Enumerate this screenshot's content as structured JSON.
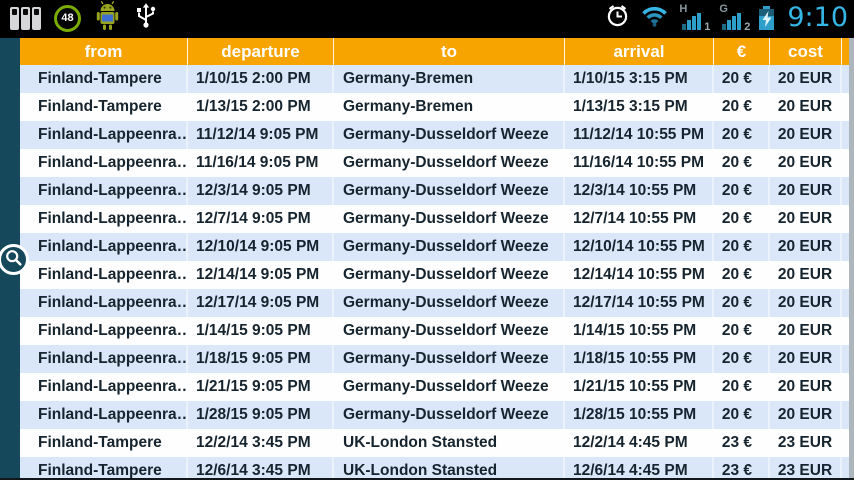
{
  "colors": {
    "header_bg": "#F7A300",
    "accent_blue": "#33B5E5",
    "row_alt_bg": "#D9E7F8",
    "row_bg": "#FFFFFF",
    "left_strip": "#15485A",
    "cell_text": "#16242F",
    "scrollbar": "#AEB6BD"
  },
  "status_bar": {
    "time": "9:10",
    "battery_badge_value": "48",
    "sim1": {
      "network": "H",
      "slot": "1"
    },
    "sim2": {
      "network": "G",
      "slot": "2"
    },
    "icons": [
      "battery-widget-icon",
      "battery-percentage-badge",
      "android-robot-icon",
      "usb-icon",
      "alarm-clock-icon",
      "wifi-icon",
      "signal-sim1-icon",
      "signal-sim2-icon",
      "battery-charging-icon"
    ]
  },
  "table": {
    "columns": [
      {
        "key": "from",
        "label": "from"
      },
      {
        "key": "departure",
        "label": "departure"
      },
      {
        "key": "to",
        "label": "to"
      },
      {
        "key": "arrival",
        "label": "arrival"
      },
      {
        "key": "eur",
        "label": "€"
      },
      {
        "key": "cost",
        "label": "cost"
      }
    ],
    "rows": [
      {
        "from": "Finland-Tampere",
        "departure": "1/10/15 2:00 PM",
        "to": "Germany-Bremen",
        "arrival": "1/10/15 3:15 PM",
        "eur": "20 €",
        "cost": "20 EUR"
      },
      {
        "from": "Finland-Tampere",
        "departure": "1/13/15 2:00 PM",
        "to": "Germany-Bremen",
        "arrival": "1/13/15 3:15 PM",
        "eur": "20 €",
        "cost": "20 EUR"
      },
      {
        "from": "Finland-Lappeenra…",
        "departure": "11/12/14 9:05 PM",
        "to": "Germany-Dusseldorf Weeze",
        "arrival": "11/12/14 10:55 PM",
        "eur": "20 €",
        "cost": "20 EUR"
      },
      {
        "from": "Finland-Lappeenra…",
        "departure": "11/16/14 9:05 PM",
        "to": "Germany-Dusseldorf Weeze",
        "arrival": "11/16/14 10:55 PM",
        "eur": "20 €",
        "cost": "20 EUR"
      },
      {
        "from": "Finland-Lappeenra…",
        "departure": "12/3/14 9:05 PM",
        "to": "Germany-Dusseldorf Weeze",
        "arrival": "12/3/14 10:55 PM",
        "eur": "20 €",
        "cost": "20 EUR"
      },
      {
        "from": "Finland-Lappeenra…",
        "departure": "12/7/14 9:05 PM",
        "to": "Germany-Dusseldorf Weeze",
        "arrival": "12/7/14 10:55 PM",
        "eur": "20 €",
        "cost": "20 EUR"
      },
      {
        "from": "Finland-Lappeenra…",
        "departure": "12/10/14 9:05 PM",
        "to": "Germany-Dusseldorf Weeze",
        "arrival": "12/10/14 10:55 PM",
        "eur": "20 €",
        "cost": "20 EUR"
      },
      {
        "from": "Finland-Lappeenra…",
        "departure": "12/14/14 9:05 PM",
        "to": "Germany-Dusseldorf Weeze",
        "arrival": "12/14/14 10:55 PM",
        "eur": "20 €",
        "cost": "20 EUR"
      },
      {
        "from": "Finland-Lappeenra…",
        "departure": "12/17/14 9:05 PM",
        "to": "Germany-Dusseldorf Weeze",
        "arrival": "12/17/14 10:55 PM",
        "eur": "20 €",
        "cost": "20 EUR"
      },
      {
        "from": "Finland-Lappeenra…",
        "departure": "1/14/15 9:05 PM",
        "to": "Germany-Dusseldorf Weeze",
        "arrival": "1/14/15 10:55 PM",
        "eur": "20 €",
        "cost": "20 EUR"
      },
      {
        "from": "Finland-Lappeenra…",
        "departure": "1/18/15 9:05 PM",
        "to": "Germany-Dusseldorf Weeze",
        "arrival": "1/18/15 10:55 PM",
        "eur": "20 €",
        "cost": "20 EUR"
      },
      {
        "from": "Finland-Lappeenra…",
        "departure": "1/21/15 9:05 PM",
        "to": "Germany-Dusseldorf Weeze",
        "arrival": "1/21/15 10:55 PM",
        "eur": "20 €",
        "cost": "20 EUR"
      },
      {
        "from": "Finland-Lappeenra…",
        "departure": "1/28/15 9:05 PM",
        "to": "Germany-Dusseldorf Weeze",
        "arrival": "1/28/15 10:55 PM",
        "eur": "20 €",
        "cost": "20 EUR"
      },
      {
        "from": "Finland-Tampere",
        "departure": "12/2/14 3:45 PM",
        "to": "UK-London Stansted",
        "arrival": "12/2/14 4:45 PM",
        "eur": "23 €",
        "cost": "23 EUR"
      },
      {
        "from": "Finland-Tampere",
        "departure": "12/6/14 3:45 PM",
        "to": "UK-London Stansted",
        "arrival": "12/6/14 4:45 PM",
        "eur": "23 €",
        "cost": "23 EUR"
      }
    ]
  },
  "fab": {
    "icon": "search-icon"
  }
}
